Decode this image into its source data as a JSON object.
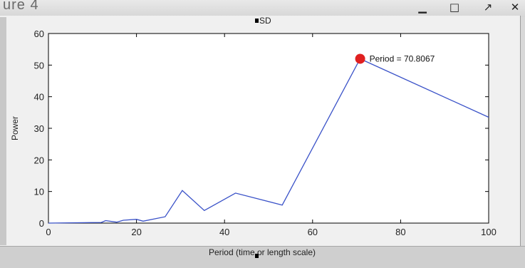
{
  "window": {
    "title": "ure 4",
    "minimize_icon": "minimize-icon",
    "maximize_icon": "maximize-icon",
    "restore_icon": "arrow-icon",
    "close_icon": "close-icon"
  },
  "chart_data": {
    "type": "line",
    "title": "",
    "legend": {
      "entries": [
        "SD"
      ],
      "placement": "top-center"
    },
    "xlabel": "Period (time or length scale)",
    "ylabel": "Power",
    "xlim": [
      0,
      100
    ],
    "ylim": [
      0,
      60
    ],
    "xticks": [
      0,
      20,
      40,
      60,
      80,
      100
    ],
    "yticks": [
      0,
      10,
      20,
      30,
      40,
      50,
      60
    ],
    "grid": false,
    "series": [
      {
        "name": "SD",
        "color": "#3a52c8",
        "x": [
          0,
          12,
          13,
          15.5,
          17,
          20,
          21.5,
          26.5,
          30.4,
          35.4,
          42.5,
          53.1,
          70.8,
          100
        ],
        "y": [
          0,
          0.2,
          0.8,
          0.3,
          0.9,
          1.2,
          0.6,
          2.0,
          10.3,
          4.0,
          9.5,
          5.7,
          52.0,
          33.5
        ]
      }
    ],
    "annotation": {
      "x": 70.8067,
      "y": 52.0,
      "color": "#e02020",
      "label": "Period = 70.8067"
    }
  }
}
